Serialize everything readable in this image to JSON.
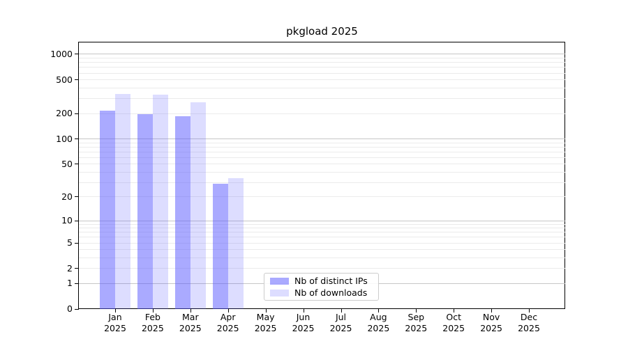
{
  "chart_data": {
    "type": "bar",
    "title": "pkgload 2025",
    "x_year": "2025",
    "categories": [
      "Jan",
      "Feb",
      "Mar",
      "Apr",
      "May",
      "Jun",
      "Jul",
      "Aug",
      "Sep",
      "Oct",
      "Nov",
      "Dec"
    ],
    "series": [
      {
        "name": "Nb of distinct IPs",
        "color": "#5555ff80",
        "values": [
          215,
          195,
          185,
          29,
          0,
          0,
          0,
          0,
          0,
          0,
          0,
          0
        ]
      },
      {
        "name": "Nb of downloads",
        "color": "#5555ff33",
        "values": [
          340,
          335,
          270,
          34,
          0,
          0,
          0,
          0,
          0,
          0,
          0,
          0
        ]
      }
    ],
    "xlabel": "",
    "ylabel": "",
    "yscale": "log1p",
    "yticks": [
      1000,
      500,
      200,
      100,
      50,
      20,
      10,
      5,
      2,
      1,
      0
    ],
    "ylim": [
      0,
      1350
    ],
    "grid": "horizontal, minor log divisions",
    "legend_position": "lower-center-inside",
    "colors": {
      "grid_major": "#c6c6c6",
      "grid_minor": "#ebebeb",
      "axis": "#000000",
      "text": "#000000",
      "legend_border": "#cccccc"
    }
  }
}
